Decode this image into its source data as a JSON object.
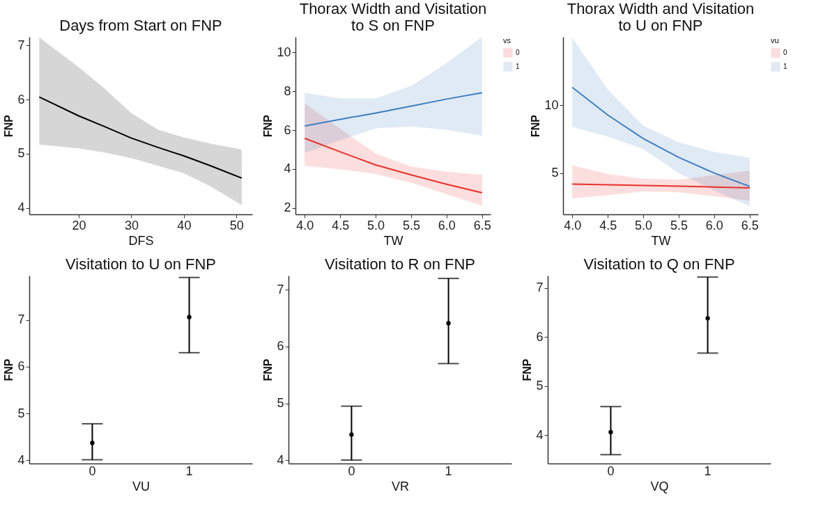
{
  "chart_data": [
    {
      "type": "line",
      "title": "Days from Start on FNP",
      "xlabel": "DFS",
      "ylabel": "FNP",
      "color": "#000000",
      "x": [
        12.5,
        20,
        25,
        30,
        35,
        40,
        45,
        51
      ],
      "values": [
        6.05,
        5.7,
        5.5,
        5.29,
        5.12,
        4.96,
        4.78,
        4.55
      ],
      "lower": [
        5.17,
        5.1,
        5.02,
        4.92,
        4.78,
        4.64,
        4.4,
        4.05
      ],
      "upper": [
        7.15,
        6.6,
        6.2,
        5.75,
        5.45,
        5.3,
        5.19,
        5.08
      ],
      "xlim": [
        10.6,
        53
      ],
      "xticks": [
        20,
        30,
        40,
        50
      ],
      "ylim": [
        3.88,
        7.16
      ],
      "yticks": [
        4,
        5,
        6,
        7
      ],
      "grid": false
    },
    {
      "type": "line",
      "title": "Thorax Width and Visitation\nto S on FNP",
      "xlabel": "TW",
      "ylabel": "FNP",
      "legend_title": "vs",
      "legend": "right",
      "x": [
        4.0,
        4.5,
        5.0,
        5.5,
        6.0,
        6.5
      ],
      "series": [
        {
          "name": "0",
          "color": "#e8302a",
          "values": [
            5.58,
            4.89,
            4.21,
            3.7,
            3.22,
            2.78
          ],
          "lower": [
            4.17,
            3.99,
            3.75,
            3.3,
            2.71,
            2.12
          ],
          "upper": [
            7.4,
            6.07,
            4.79,
            4.13,
            3.86,
            3.7
          ]
        },
        {
          "name": "1",
          "color": "#3d7fc1",
          "values": [
            6.22,
            6.56,
            6.88,
            7.24,
            7.6,
            7.93
          ],
          "lower": [
            4.83,
            5.48,
            6.09,
            6.19,
            6.02,
            5.72
          ],
          "upper": [
            7.93,
            7.63,
            7.63,
            8.28,
            9.45,
            10.8
          ]
        }
      ],
      "xlim": [
        3.87,
        6.62
      ],
      "xticks": [
        {
          "value": 4,
          "label": "4.0"
        },
        4.5,
        {
          "value": 5,
          "label": "5.0"
        },
        5.5,
        {
          "value": 6,
          "label": "6.0"
        },
        6.5
      ],
      "ylim": [
        1.67,
        10.8
      ],
      "yticks": [
        2,
        4,
        6,
        8,
        10
      ],
      "grid": false
    },
    {
      "type": "line",
      "title": "Thorax Width and Visitation\nto U on FNP",
      "xlabel": "TW",
      "ylabel": "FNP",
      "legend_title": "vu",
      "legend": "right",
      "x": [
        4.0,
        4.5,
        5.0,
        5.5,
        6.0,
        6.5
      ],
      "series": [
        {
          "name": "0",
          "color": "#e8302a",
          "values": [
            4.19,
            4.14,
            4.08,
            4.03,
            3.97,
            3.91
          ],
          "lower": [
            3.13,
            3.37,
            3.65,
            3.58,
            3.29,
            2.95
          ],
          "upper": [
            5.57,
            4.93,
            4.58,
            4.51,
            4.86,
            5.17
          ]
        },
        {
          "name": "1",
          "color": "#3d7fc1",
          "values": [
            11.33,
            9.29,
            7.55,
            6.16,
            5.0,
            4.01
          ],
          "lower": [
            8.4,
            7.69,
            6.77,
            5.0,
            3.73,
            2.55
          ],
          "upper": [
            15.0,
            11.16,
            8.5,
            7.27,
            6.56,
            6.13
          ]
        }
      ],
      "xlim": [
        3.87,
        6.62
      ],
      "xticks": [
        {
          "value": 4,
          "label": "4.0"
        },
        4.5,
        {
          "value": 5,
          "label": "5.0"
        },
        5.5,
        {
          "value": 6,
          "label": "6.0"
        },
        6.5
      ],
      "ylim": [
        1.95,
        15.06
      ],
      "yticks": [
        5,
        10
      ],
      "grid": false
    },
    {
      "type": "scatter",
      "title": "Visitation to U on FNP",
      "xlabel": "VU",
      "ylabel": "FNP",
      "color": "#000000",
      "marker": "circle",
      "categories": [
        "0",
        "1"
      ],
      "values": [
        4.37,
        7.06
      ],
      "errors": [
        [
          4.01,
          4.78
        ],
        [
          6.3,
          7.91
        ]
      ],
      "ylim": [
        3.93,
        7.95
      ],
      "yticks": [
        4,
        5,
        6,
        7
      ],
      "grid": false
    },
    {
      "type": "scatter",
      "title": "Visitation to R on FNP",
      "xlabel": "VR",
      "ylabel": "FNP",
      "color": "#000000",
      "marker": "circle",
      "categories": [
        "0",
        "1"
      ],
      "values": [
        4.45,
        6.41
      ],
      "errors": [
        [
          4.0,
          4.95
        ],
        [
          5.7,
          7.2
        ]
      ],
      "ylim": [
        3.94,
        7.25
      ],
      "yticks": [
        4,
        5,
        6,
        7
      ],
      "grid": false
    },
    {
      "type": "scatter",
      "title": "Visitation to Q on FNP",
      "xlabel": "VQ",
      "ylabel": "FNP",
      "color": "#000000",
      "marker": "circle",
      "categories": [
        "0",
        "1"
      ],
      "values": [
        4.06,
        6.38
      ],
      "errors": [
        [
          3.6,
          4.58
        ],
        [
          5.67,
          7.22
        ]
      ],
      "ylim": [
        3.42,
        7.25
      ],
      "yticks": [
        4,
        5,
        6,
        7
      ],
      "grid": false
    }
  ]
}
